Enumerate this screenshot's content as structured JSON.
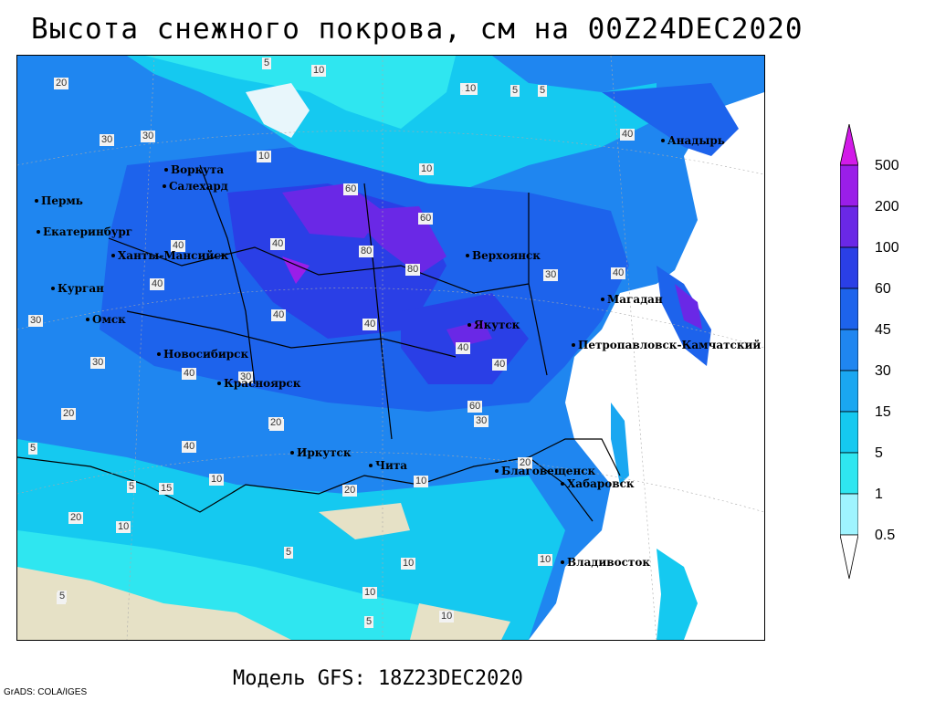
{
  "title": "Высота снежного покрова, см на 00Z24DEC2020",
  "footer": "Модель GFS: 18Z23DEC2020",
  "credit": "GrADS: COLA/IGES",
  "map": {
    "colors": {
      "ocean": "#ffffff",
      "ice_sea": "#e8f6fb",
      "bare_land": "#e6e1c6",
      "c_0_5": "#9ff4ff",
      "c_1": "#2fe6f0",
      "c_5": "#15c9f0",
      "c_15": "#1aa7f1",
      "c_30": "#1f86f0",
      "c_45": "#1d63ec",
      "c_60": "#2a3fe6",
      "c_100": "#6a28e6",
      "c_200": "#9a1ee8",
      "c_500": "#d21be8",
      "border": "#000000"
    },
    "cities": [
      {
        "name": "Анадырь"
      },
      {
        "name": "Воркута"
      },
      {
        "name": "Салехард"
      },
      {
        "name": "Пермь"
      },
      {
        "name": "Екатеринбург"
      },
      {
        "name": "Ханты-Мансийск"
      },
      {
        "name": "Курган"
      },
      {
        "name": "Омск"
      },
      {
        "name": "Новосибирск"
      },
      {
        "name": "Красноярск"
      },
      {
        "name": "Иркутск"
      },
      {
        "name": "Чита"
      },
      {
        "name": "Благовещенск"
      },
      {
        "name": "Хабаровск"
      },
      {
        "name": "Владивосток"
      },
      {
        "name": "Верхоянск"
      },
      {
        "name": "Якутск"
      },
      {
        "name": "Магадан"
      },
      {
        "name": "Петропавловск-Камчатский"
      }
    ],
    "contour_labels": [
      "5",
      "10",
      "10",
      "5",
      "5",
      "20",
      "30",
      "30",
      "10",
      "10",
      "60",
      "60",
      "80",
      "80",
      "40",
      "40",
      "40",
      "40",
      "40",
      "30",
      "20",
      "20",
      "10",
      "40",
      "40",
      "30",
      "30",
      "30",
      "40",
      "60",
      "40",
      "20",
      "20",
      "15",
      "10",
      "5",
      "5",
      "5",
      "10",
      "10",
      "10",
      "10",
      "5",
      "10",
      "20",
      "30",
      "20",
      "40",
      "40",
      "5",
      "10",
      "5"
    ]
  },
  "legend": {
    "levels": [
      "500",
      "200",
      "100",
      "60",
      "45",
      "30",
      "15",
      "5",
      "1",
      "0.5"
    ]
  }
}
